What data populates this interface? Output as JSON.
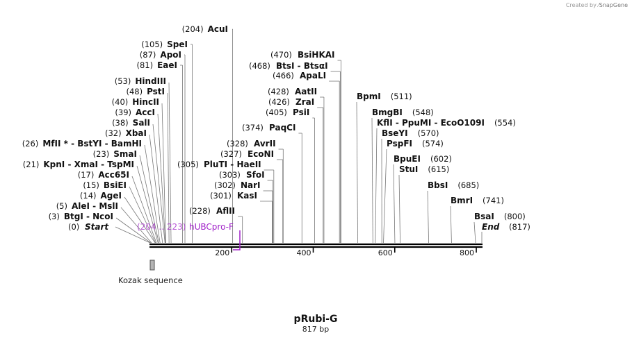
{
  "credit": {
    "prefix": "Created by",
    "brand": "SnapGene"
  },
  "plasmid": {
    "name": "pRubi-G",
    "length_label": "817 bp",
    "length": 817
  },
  "ticks": [
    {
      "value": 200,
      "label": "200"
    },
    {
      "value": 400,
      "label": "400"
    },
    {
      "value": 600,
      "label": "600"
    },
    {
      "value": 800,
      "label": "800"
    }
  ],
  "terminals": [
    {
      "pos": "(0)",
      "label": "Start"
    },
    {
      "pos": "(817)",
      "label": "End"
    }
  ],
  "left_sites": [
    {
      "pos": "(204)",
      "names": [
        "AcuI"
      ],
      "site": 204
    },
    {
      "pos": "(105)",
      "names": [
        "SpeI"
      ],
      "site": 105
    },
    {
      "pos": "(87)",
      "names": [
        "ApoI"
      ],
      "site": 87
    },
    {
      "pos": "(81)",
      "names": [
        "EaeI"
      ],
      "site": 81
    },
    {
      "pos": "(53)",
      "names": [
        "HindIII"
      ],
      "site": 53
    },
    {
      "pos": "(48)",
      "names": [
        "PstI"
      ],
      "site": 48
    },
    {
      "pos": "(40)",
      "names": [
        "HincII"
      ],
      "site": 40
    },
    {
      "pos": "(39)",
      "names": [
        "AccI"
      ],
      "site": 39
    },
    {
      "pos": "(38)",
      "names": [
        "SalI"
      ],
      "site": 38
    },
    {
      "pos": "(32)",
      "names": [
        "XbaI"
      ],
      "site": 32
    },
    {
      "pos": "(26)",
      "names": [
        "MfII *",
        "BstYI",
        "BamHI"
      ],
      "site": 26
    },
    {
      "pos": "(23)",
      "names": [
        "SmaI"
      ],
      "site": 23
    },
    {
      "pos": "(21)",
      "names": [
        "KpnI",
        "XmaI",
        "TspMI"
      ],
      "site": 21
    },
    {
      "pos": "(17)",
      "names": [
        "Acc65I"
      ],
      "site": 17
    },
    {
      "pos": "(15)",
      "names": [
        "BsiEI"
      ],
      "site": 15
    },
    {
      "pos": "(14)",
      "names": [
        "AgeI"
      ],
      "site": 14
    },
    {
      "pos": "(5)",
      "names": [
        "AleI",
        "MslI"
      ],
      "site": 5
    },
    {
      "pos": "(3)",
      "names": [
        "BtgI",
        "NcoI"
      ],
      "site": 3
    }
  ],
  "middle_sites": [
    {
      "pos": "(470)",
      "names": [
        "BsiHKAI"
      ],
      "site": 470
    },
    {
      "pos": "(468)",
      "names": [
        "BtsI",
        "BtsαI"
      ],
      "site": 468
    },
    {
      "pos": "(466)",
      "names": [
        "ApaLI"
      ],
      "site": 466
    },
    {
      "pos": "(428)",
      "names": [
        "AatII"
      ],
      "site": 428
    },
    {
      "pos": "(426)",
      "names": [
        "ZraI"
      ],
      "site": 426
    },
    {
      "pos": "(405)",
      "names": [
        "PsiI"
      ],
      "site": 405
    },
    {
      "pos": "(374)",
      "names": [
        "PaqCI"
      ],
      "site": 374
    },
    {
      "pos": "(328)",
      "names": [
        "AvrII"
      ],
      "site": 328
    },
    {
      "pos": "(327)",
      "names": [
        "EcoNI"
      ],
      "site": 327
    },
    {
      "pos": "(305)",
      "names": [
        "PluTI",
        "HaeII"
      ],
      "site": 305
    },
    {
      "pos": "(303)",
      "names": [
        "SfoI"
      ],
      "site": 303
    },
    {
      "pos": "(302)",
      "names": [
        "NarI"
      ],
      "site": 302
    },
    {
      "pos": "(301)",
      "names": [
        "KasI"
      ],
      "site": 301
    },
    {
      "pos": "(228)",
      "names": [
        "AflII"
      ],
      "site": 228
    }
  ],
  "right_sites": [
    {
      "pos": "(511)",
      "names": [
        "BpmI"
      ],
      "site": 511
    },
    {
      "pos": "(548)",
      "names": [
        "BmgBI"
      ],
      "site": 548
    },
    {
      "pos": "(554)",
      "names": [
        "KflI",
        "PpuMI",
        "EcoO109I"
      ],
      "site": 554
    },
    {
      "pos": "(570)",
      "names": [
        "BseYI"
      ],
      "site": 570
    },
    {
      "pos": "(574)",
      "names": [
        "PspFI"
      ],
      "site": 574
    },
    {
      "pos": "(602)",
      "names": [
        "BpuEI"
      ],
      "site": 602
    },
    {
      "pos": "(615)",
      "names": [
        "StuI"
      ],
      "site": 615
    },
    {
      "pos": "(685)",
      "names": [
        "BbsI"
      ],
      "site": 685
    },
    {
      "pos": "(741)",
      "names": [
        "BmrI"
      ],
      "site": 741
    },
    {
      "pos": "(800)",
      "names": [
        "BsaI"
      ],
      "site": 800
    }
  ],
  "primer": {
    "range": "(204 .. 223)",
    "name": "hUBCpro-F"
  },
  "feature": {
    "name": "Kozak sequence"
  },
  "colors": {
    "primer": "#a020c8",
    "feature_fill": "#b4b4b4",
    "line": "#000000"
  }
}
